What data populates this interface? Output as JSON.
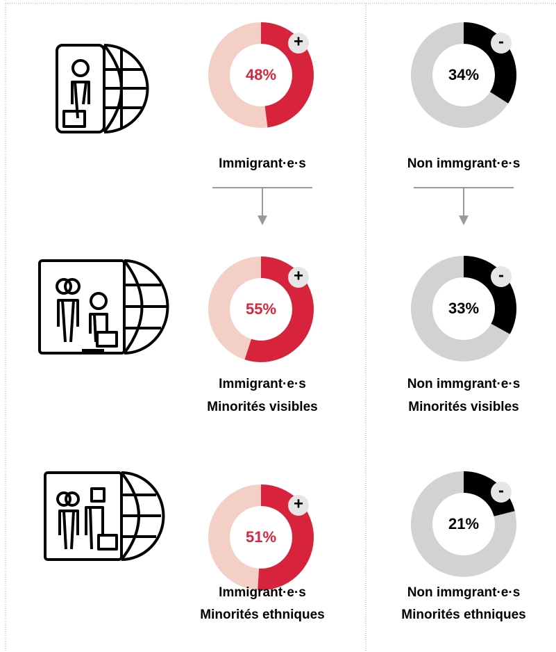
{
  "chart_data": [
    {
      "type": "donut",
      "value": 48,
      "value_label": "48%",
      "badge": "+",
      "color": "#d7233b",
      "track_color": "#f4cfc6",
      "labels": [
        "Immigrant·e·s"
      ]
    },
    {
      "type": "donut",
      "value": 34,
      "value_label": "34%",
      "badge": "-",
      "color": "#000000",
      "track_color": "#d2d2d2",
      "labels": [
        "Non immgrant·e·s"
      ]
    },
    {
      "type": "donut",
      "value": 55,
      "value_label": "55%",
      "badge": "+",
      "color": "#d7233b",
      "track_color": "#f4cfc6",
      "labels": [
        "Immigrant·e·s",
        "Minorités visibles"
      ]
    },
    {
      "type": "donut",
      "value": 33,
      "value_label": "33%",
      "badge": "-",
      "color": "#000000",
      "track_color": "#d2d2d2",
      "labels": [
        "Non immgrant·e·s",
        "Minorités visibles"
      ]
    },
    {
      "type": "donut",
      "value": 51,
      "value_label": "51%",
      "badge": "+",
      "color": "#d7233b",
      "track_color": "#f4cfc6",
      "labels": [
        "Immigrant·e·s",
        "Minorités ethniques"
      ]
    },
    {
      "type": "donut",
      "value": 21,
      "value_label": "21%",
      "badge": "-",
      "color": "#000000",
      "track_color": "#d2d2d2",
      "labels": [
        "Non immgrant·e·s",
        "Minorités ethniques"
      ]
    }
  ]
}
